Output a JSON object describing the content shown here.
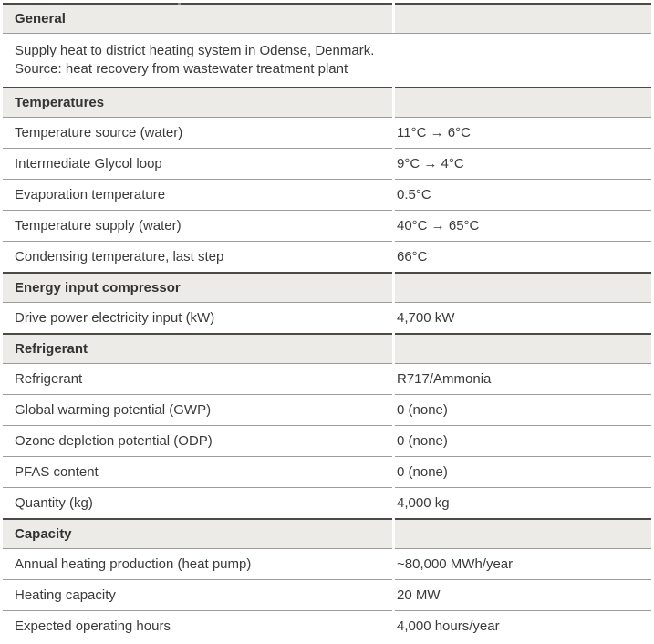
{
  "doc": {
    "title": "Heat pump project specification table",
    "colors": {
      "section_header_bg": "#edebe8",
      "section_border": "#4d4945",
      "row_border": "#9d9c9a",
      "text": "#3b3a38"
    },
    "sections": [
      {
        "header": "General",
        "description_lines": [
          "Supply heat to district heating system in Odense, Denmark.",
          "Source: heat recovery from wastewater treatment plant"
        ],
        "rows": []
      },
      {
        "header": "Temperatures",
        "rows": [
          {
            "label": "Temperature source (water)",
            "value": "11°C → 6°C"
          },
          {
            "label": "Intermediate Glycol loop",
            "value": "9°C → 4°C"
          },
          {
            "label": "Evaporation temperature",
            "value": "0.5°C"
          },
          {
            "label": "Temperature supply (water)",
            "value": "40°C → 65°C"
          },
          {
            "label": "Condensing temperature, last step",
            "value": "66°C"
          }
        ]
      },
      {
        "header": "Energy input compressor",
        "rows": [
          {
            "label": "Drive power electricity input (kW)",
            "value": "4,700 kW"
          }
        ]
      },
      {
        "header": "Refrigerant",
        "rows": [
          {
            "label": "Refrigerant",
            "value": "R717/Ammonia"
          },
          {
            "label": "Global warming potential (GWP)",
            "value": "0 (none)"
          },
          {
            "label": "Ozone depletion potential (ODP)",
            "value": "0 (none)"
          },
          {
            "label": "PFAS content",
            "value": "0 (none)"
          },
          {
            "label": "Quantity (kg)",
            "value": "4,000 kg"
          }
        ]
      },
      {
        "header": "Capacity",
        "rows": [
          {
            "label": "Annual heating production (heat pump)",
            "value": "~80,000 MWh/year"
          },
          {
            "label": "Heating capacity",
            "value": "20 MW"
          },
          {
            "label": "Expected operating hours",
            "value": "4,000 hours/year"
          }
        ]
      }
    ]
  }
}
